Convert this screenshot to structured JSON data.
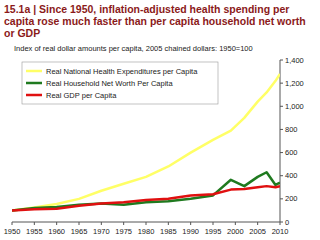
{
  "chart_data": {
    "type": "line",
    "title": "15.1a | Since 1950, inflation-adjusted health spending per capita rose much faster than per capita household net worth or GDP",
    "subtitle": "Index of real dollar amounts per capita, 2005 chained dollars: 1950=100",
    "x": [
      1950,
      1955,
      1960,
      1965,
      1970,
      1975,
      1980,
      1985,
      1990,
      1995,
      1999,
      2002,
      2005,
      2007,
      2009,
      2010
    ],
    "series": [
      {
        "name": "Real National Health Expenditures per Capita",
        "color": "#ffff66",
        "values": [
          100,
          125,
          155,
          200,
          270,
          330,
          390,
          480,
          600,
          710,
          790,
          900,
          1040,
          1120,
          1220,
          1280
        ]
      },
      {
        "name": "Real Household Net Worth Per Capita",
        "color": "#1f7a1f",
        "values": [
          100,
          120,
          130,
          150,
          160,
          150,
          170,
          180,
          200,
          230,
          365,
          310,
          390,
          430,
          320,
          340
        ]
      },
      {
        "name": "Real GDP per Capita",
        "color": "#e01010",
        "values": [
          100,
          110,
          115,
          140,
          160,
          170,
          190,
          200,
          230,
          240,
          280,
          285,
          300,
          310,
          300,
          310
        ]
      }
    ],
    "xlim": [
      1950,
      2010
    ],
    "xticks": [
      1950,
      1955,
      1960,
      1965,
      1970,
      1975,
      1980,
      1985,
      1990,
      1995,
      2000,
      2005,
      2010
    ],
    "ylim": [
      0,
      1400
    ],
    "yticks": [
      0,
      200,
      400,
      600,
      800,
      {
        "value": 1000,
        "label": "1,000"
      },
      {
        "value": 1200,
        "label": "1,200"
      },
      {
        "value": 1400,
        "label": "1,400"
      }
    ],
    "grid": false,
    "legend": "upper left"
  }
}
